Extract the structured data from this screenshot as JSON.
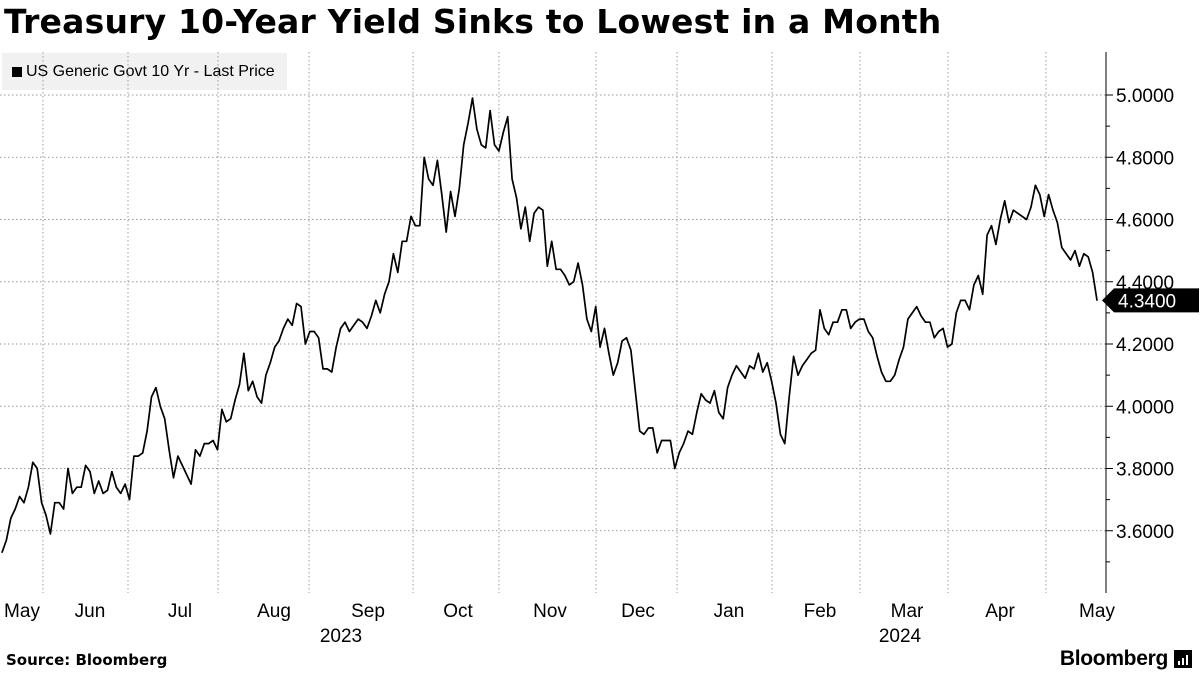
{
  "chart_data": {
    "type": "line",
    "title": "Treasury 10-Year Yield Sinks to Lowest in a Month",
    "legend": "US Generic Govt 10 Yr - Last Price",
    "series": [
      {
        "name": "US Generic Govt 10 Yr - Last Price",
        "values": [
          3.53,
          3.57,
          3.64,
          3.67,
          3.71,
          3.69,
          3.74,
          3.82,
          3.8,
          3.69,
          3.65,
          3.59,
          3.69,
          3.69,
          3.67,
          3.8,
          3.72,
          3.74,
          3.74,
          3.81,
          3.79,
          3.72,
          3.76,
          3.72,
          3.73,
          3.79,
          3.74,
          3.72,
          3.75,
          3.7,
          3.84,
          3.84,
          3.85,
          3.92,
          4.03,
          4.06,
          4.0,
          3.96,
          3.86,
          3.77,
          3.84,
          3.81,
          3.78,
          3.75,
          3.86,
          3.84,
          3.88,
          3.88,
          3.89,
          3.86,
          3.99,
          3.95,
          3.96,
          4.02,
          4.07,
          4.17,
          4.05,
          4.08,
          4.03,
          4.01,
          4.1,
          4.14,
          4.19,
          4.21,
          4.25,
          4.28,
          4.26,
          4.33,
          4.32,
          4.2,
          4.24,
          4.24,
          4.22,
          4.12,
          4.12,
          4.11,
          4.19,
          4.25,
          4.27,
          4.24,
          4.26,
          4.28,
          4.27,
          4.25,
          4.29,
          4.34,
          4.3,
          4.36,
          4.4,
          4.49,
          4.43,
          4.53,
          4.53,
          4.61,
          4.58,
          4.58,
          4.8,
          4.73,
          4.71,
          4.79,
          4.68,
          4.56,
          4.69,
          4.61,
          4.7,
          4.84,
          4.91,
          4.99,
          4.89,
          4.84,
          4.83,
          4.95,
          4.84,
          4.82,
          4.88,
          4.93,
          4.73,
          4.67,
          4.57,
          4.64,
          4.53,
          4.62,
          4.64,
          4.63,
          4.45,
          4.53,
          4.44,
          4.44,
          4.42,
          4.39,
          4.4,
          4.46,
          4.39,
          4.28,
          4.24,
          4.32,
          4.19,
          4.25,
          4.17,
          4.1,
          4.14,
          4.21,
          4.22,
          4.18,
          4.05,
          3.92,
          3.91,
          3.93,
          3.93,
          3.85,
          3.89,
          3.89,
          3.89,
          3.8,
          3.85,
          3.88,
          3.92,
          3.91,
          3.98,
          4.04,
          4.02,
          4.01,
          4.05,
          3.98,
          3.96,
          4.06,
          4.1,
          4.13,
          4.11,
          4.09,
          4.13,
          4.12,
          4.17,
          4.11,
          4.14,
          4.08,
          4.01,
          3.91,
          3.88,
          4.03,
          4.16,
          4.1,
          4.13,
          4.15,
          4.17,
          4.18,
          4.31,
          4.25,
          4.23,
          4.27,
          4.27,
          4.31,
          4.31,
          4.25,
          4.27,
          4.28,
          4.28,
          4.24,
          4.22,
          4.16,
          4.11,
          4.08,
          4.08,
          4.1,
          4.15,
          4.19,
          4.28,
          4.3,
          4.32,
          4.29,
          4.27,
          4.27,
          4.22,
          4.24,
          4.25,
          4.19,
          4.2,
          4.3,
          4.34,
          4.34,
          4.31,
          4.39,
          4.42,
          4.36,
          4.55,
          4.58,
          4.52,
          4.6,
          4.66,
          4.59,
          4.63,
          4.62,
          4.61,
          4.6,
          4.64,
          4.71,
          4.68,
          4.61,
          4.68,
          4.63,
          4.59,
          4.51,
          4.49,
          4.47,
          4.5,
          4.45,
          4.49,
          4.48,
          4.43,
          4.34
        ]
      }
    ],
    "ylim": [
      3.4,
      5.1
    ],
    "yticks": [
      "3.6000",
      "3.8000",
      "4.0000",
      "4.2000",
      "4.4000",
      "4.6000",
      "4.8000",
      "5.0000"
    ],
    "ytick_values": [
      3.6,
      3.8,
      4.0,
      4.2,
      4.4,
      4.6,
      4.8,
      5.0
    ],
    "xticks": [
      "May",
      "Jun",
      "Jul",
      "Aug",
      "Sep",
      "Oct",
      "Nov",
      "Dec",
      "Jan",
      "Feb",
      "Mar",
      "Apr",
      "May"
    ],
    "xgroups": [
      "2023",
      "2024"
    ],
    "last_value_label": "4.3400",
    "line_color": "#000000",
    "grid": true
  },
  "footer": {
    "source": "Source: Bloomberg",
    "brand": "Bloomberg"
  }
}
